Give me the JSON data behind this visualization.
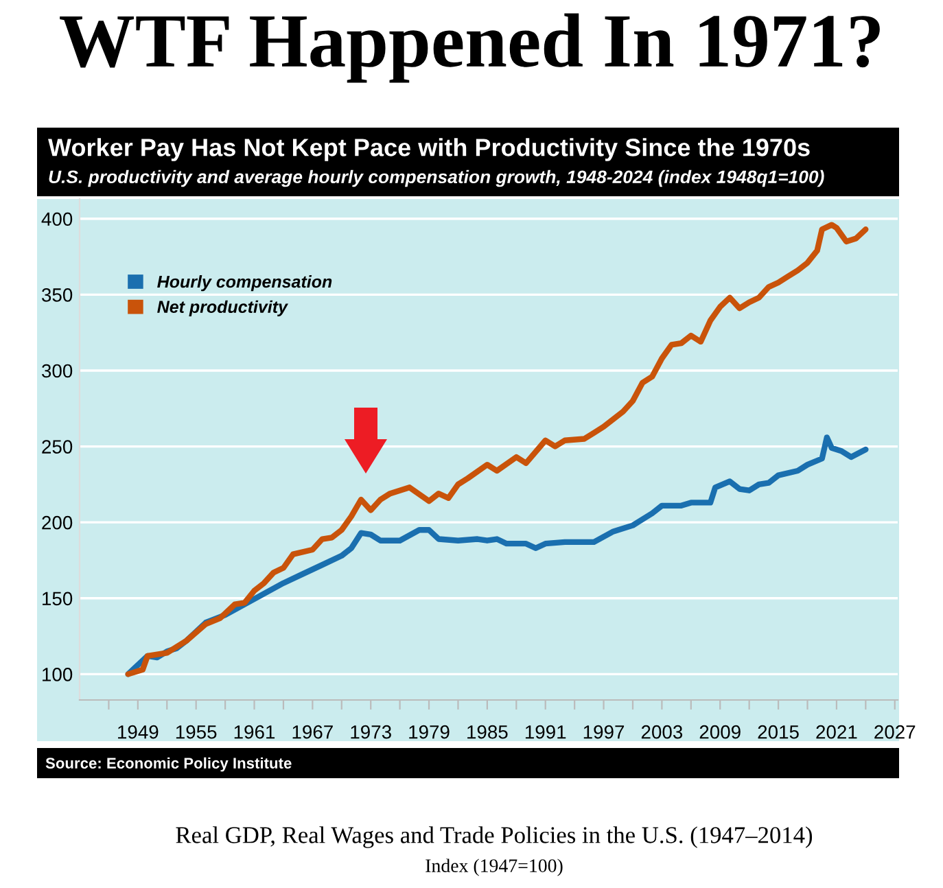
{
  "chart_data": {
    "type": "line",
    "title": "Worker Pay Has Not Kept Pace with Productivity Since the 1970s",
    "subtitle": "U.S. productivity and average hourly compensation growth, 1948-2024 (index 1948q1=100)",
    "annotations": [
      "WTF Happened In 1971?",
      "Source: Economic Policy Institute",
      "Real GDP, Real Wages and Trade Policies in the U.S. (1947–2014)",
      "Index (1947=100)"
    ],
    "series": [
      {
        "name": "Hourly compensation",
        "color": "#1a6faf",
        "x": [
          1948,
          1950,
          1951,
          1952,
          1953,
          1954,
          1956,
          1958,
          1960,
          1962,
          1964,
          1966,
          1968,
          1970,
          1971,
          1972,
          1973,
          1974,
          1976,
          1978,
          1979,
          1980,
          1982,
          1984,
          1985,
          1986,
          1987,
          1989,
          1990,
          1991,
          1993,
          1995,
          1996,
          1998,
          2000,
          2002,
          2003,
          2005,
          2006,
          2007,
          2008,
          2008.5,
          2010,
          2011,
          2012,
          2013,
          2014,
          2015,
          2017,
          2018,
          2019.5,
          2020,
          2020.5,
          2021.5,
          2022.5,
          2024
        ],
        "values": [
          100,
          112,
          111,
          115,
          117,
          122,
          134,
          139,
          146,
          153,
          160,
          166,
          172,
          178,
          183,
          193,
          192,
          188,
          188,
          195,
          195,
          189,
          188,
          189,
          188,
          189,
          186,
          186,
          183,
          186,
          187,
          187,
          187,
          194,
          198,
          206,
          211,
          211,
          213,
          213,
          213,
          223,
          227,
          222,
          221,
          225,
          226,
          231,
          234,
          238,
          242,
          256,
          249,
          247,
          243,
          248
        ]
      },
      {
        "name": "Net productivity",
        "color": "#c9530a",
        "x": [
          1948,
          1949.5,
          1950,
          1952,
          1954,
          1956,
          1957.5,
          1959,
          1960,
          1961,
          1962,
          1963,
          1964,
          1965,
          1967,
          1968,
          1969,
          1970,
          1971,
          1972,
          1973,
          1974,
          1975,
          1977,
          1979,
          1980,
          1981,
          1982,
          1983,
          1985,
          1986,
          1988,
          1989,
          1991,
          1992,
          1993,
          1995,
          1996,
          1997,
          1999,
          2000,
          2001,
          2002,
          2003,
          2004,
          2005,
          2006,
          2007,
          2008,
          2009,
          2010,
          2011,
          2012,
          2013,
          2014,
          2015,
          2016,
          2017,
          2018,
          2019,
          2019.5,
          2020.5,
          2021,
          2022,
          2023,
          2024
        ],
        "values": [
          100,
          103,
          112,
          114,
          122,
          133,
          137,
          146,
          147,
          155,
          160,
          167,
          170,
          179,
          182,
          189,
          190,
          195,
          204,
          215,
          208,
          215,
          219,
          223,
          214,
          219,
          216,
          225,
          229,
          238,
          234,
          243,
          239,
          254,
          250,
          254,
          255,
          259,
          263,
          273,
          280,
          292,
          296,
          308,
          317,
          318,
          323,
          319,
          333,
          342,
          348,
          341,
          345,
          348,
          355,
          358,
          362,
          366,
          371,
          379,
          393,
          396,
          394,
          385,
          387,
          393
        ]
      }
    ],
    "xlim": [
      1943,
      2027.3
    ],
    "xticks": [
      {
        "value": 1946,
        "label": null
      },
      1949,
      {
        "value": 1952,
        "label": null
      },
      1955,
      {
        "value": 1958,
        "label": null
      },
      1961,
      {
        "value": 1964,
        "label": null
      },
      1967,
      {
        "value": 1970,
        "label": null
      },
      1973,
      {
        "value": 1976,
        "label": null
      },
      1979,
      {
        "value": 1982,
        "label": null
      },
      1985,
      {
        "value": 1988,
        "label": null
      },
      1991,
      {
        "value": 1994,
        "label": null
      },
      1997,
      {
        "value": 2000,
        "label": null
      },
      2003,
      {
        "value": 2006,
        "label": null
      },
      2009,
      {
        "value": 2012,
        "label": null
      },
      2015,
      {
        "value": 2018,
        "label": null
      },
      2021,
      {
        "value": 2024,
        "label": null
      },
      2027
    ],
    "ylim": [
      83,
      413
    ],
    "yticks": [
      100,
      150,
      200,
      250,
      300,
      350,
      400
    ],
    "grid": "y",
    "legend": "top left",
    "marker": "none",
    "line_style": "solid"
  }
}
